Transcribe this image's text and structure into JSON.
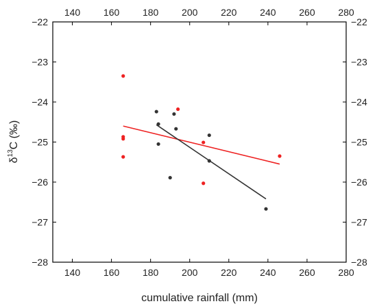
{
  "chart_data": {
    "type": "scatter",
    "title": "",
    "xlabel": "cumulative rainfall (mm)",
    "ylabel_parts": {
      "pre": "δ",
      "sup": "13",
      "post": "C (‰)"
    },
    "xlim": [
      130,
      280
    ],
    "ylim": [
      -28,
      -22
    ],
    "x_ticks": [
      "140",
      "160",
      "180",
      "200",
      "220",
      "240",
      "260",
      "280"
    ],
    "x_tick_values": [
      140,
      160,
      180,
      200,
      220,
      240,
      260,
      280
    ],
    "y_ticks": [
      "−22",
      "−23",
      "−24",
      "−25",
      "−26",
      "−27",
      "−28"
    ],
    "y_tick_values": [
      -22,
      -23,
      -24,
      -25,
      -26,
      -27,
      -28
    ],
    "mirrored_axes": true,
    "grid": false,
    "series": [
      {
        "color": "#ee2222",
        "points": [
          {
            "x": 166,
            "y": -23.35
          },
          {
            "x": 166,
            "y": -24.87
          },
          {
            "x": 166,
            "y": -24.92
          },
          {
            "x": 166,
            "y": -25.37
          },
          {
            "x": 194,
            "y": -24.18
          },
          {
            "x": 207,
            "y": -25.01
          },
          {
            "x": 207,
            "y": -26.03
          },
          {
            "x": 246,
            "y": -25.35
          }
        ],
        "trend": {
          "x": [
            166,
            246
          ],
          "y": [
            -24.6,
            -25.55
          ]
        }
      },
      {
        "color": "#333333",
        "points": [
          {
            "x": 183,
            "y": -24.24
          },
          {
            "x": 184,
            "y": -24.55
          },
          {
            "x": 184,
            "y": -25.05
          },
          {
            "x": 190,
            "y": -25.89
          },
          {
            "x": 192,
            "y": -24.3
          },
          {
            "x": 193,
            "y": -24.67
          },
          {
            "x": 210,
            "y": -24.83
          },
          {
            "x": 210,
            "y": -25.47
          },
          {
            "x": 239,
            "y": -26.67
          }
        ],
        "trend": {
          "x": [
            183,
            239
          ],
          "y": [
            -24.57,
            -26.42
          ]
        }
      }
    ]
  }
}
